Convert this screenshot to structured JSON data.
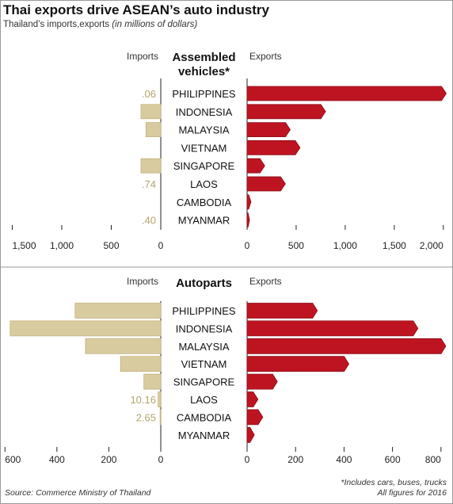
{
  "header": {
    "title": "Thai exports drive ASEAN’s auto industry",
    "subtitle_main": "Thailand’s imports,exports",
    "subtitle_units": "(in millions of dollars)"
  },
  "footer": {
    "source": "Source: Commerce Ministry of Thailand",
    "footnote_line1": "*Includes cars, buses, trucks",
    "footnote_line2": "All figures for 2016"
  },
  "colors": {
    "imports": "#d8cba0",
    "imports_stroke": "#c4b37e",
    "exports": "#be1422",
    "exports_stroke": "#8c0d17",
    "import_value_label": "#b3a46c"
  },
  "chart_data": [
    {
      "type": "bar",
      "title_lines": [
        "Assembled",
        "vehicles*"
      ],
      "left_label": "Imports",
      "right_label": "Exports",
      "categories": [
        "PHILIPPINES",
        "INDONESIA",
        "MALAYSIA",
        "VIETNAM",
        "SINGAPORE",
        "LAOS",
        "CAMBODIA",
        "MYANMAR"
      ],
      "series": [
        {
          "name": "Imports",
          "values": [
            0.06,
            200,
            150,
            0,
            200,
            0.74,
            0,
            0.4
          ]
        },
        {
          "name": "Exports",
          "values": [
            2030,
            800,
            440,
            540,
            180,
            390,
            40,
            25
          ]
        }
      ],
      "import_value_labels": [
        ".06",
        "",
        "",
        "",
        "",
        ".74",
        "",
        ".40"
      ],
      "imports_xlim": [
        0,
        1600
      ],
      "exports_xlim": [
        0,
        2050
      ],
      "imports_ticks": [
        1500,
        1000,
        500,
        0
      ],
      "imports_tick_labels": [
        "1,500",
        "1,000",
        "500",
        "0"
      ],
      "exports_ticks": [
        0,
        500,
        1000,
        1500,
        2000
      ],
      "exports_tick_labels": [
        "0",
        "500",
        "1,000",
        "1,500",
        "2,000"
      ],
      "grid": false,
      "legend": "none"
    },
    {
      "type": "bar",
      "title_lines": [
        "Autoparts"
      ],
      "left_label": "Imports",
      "right_label": "Exports",
      "categories": [
        "PHILIPPINES",
        "INDONESIA",
        "MALAYSIA",
        "VIETNAM",
        "SINGAPORE",
        "LAOS",
        "CAMBODIA",
        "MYANMAR"
      ],
      "series": [
        {
          "name": "Imports",
          "values": [
            330,
            580,
            290,
            155,
            65,
            10.16,
            2.65,
            0
          ]
        },
        {
          "name": "Exports",
          "values": [
            290,
            705,
            820,
            420,
            125,
            45,
            65,
            30
          ]
        }
      ],
      "import_value_labels": [
        "",
        "",
        "",
        "",
        "",
        "10.16",
        "2.65",
        ""
      ],
      "imports_xlim": [
        0,
        610
      ],
      "exports_xlim": [
        0,
        830
      ],
      "imports_ticks": [
        600,
        400,
        200,
        0
      ],
      "imports_tick_labels": [
        "600",
        "400",
        "200",
        "0"
      ],
      "exports_ticks": [
        0,
        200,
        400,
        600,
        800
      ],
      "exports_tick_labels": [
        "0",
        "200",
        "400",
        "600",
        "800"
      ],
      "grid": false,
      "legend": "none"
    }
  ]
}
